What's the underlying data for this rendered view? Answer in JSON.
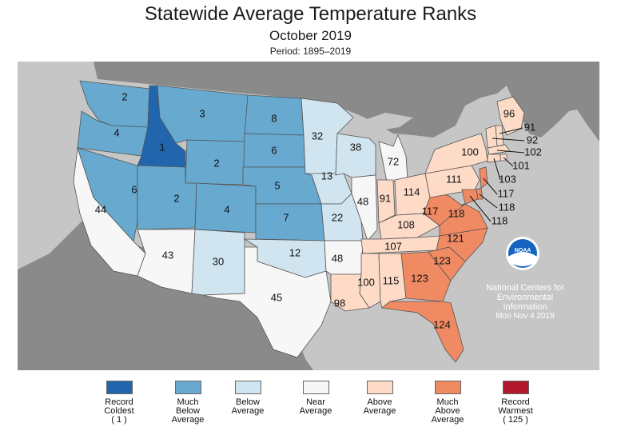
{
  "title": "Statewide Average Temperature Ranks",
  "subtitle": "October 2019",
  "period": "Period: 1895–2019",
  "credit": {
    "line1": "National Centers for",
    "line2": "Environmental",
    "line3": "Information",
    "date": "Mon Nov  4 2019"
  },
  "noaa_logo_text": "NOAA",
  "legend": [
    {
      "label": "Record\nColdest\n( 1 )",
      "color": "#2166ac"
    },
    {
      "label": "Much\nBelow\nAverage",
      "color": "#67a9cf"
    },
    {
      "label": "Below\nAverage",
      "color": "#d1e5f0"
    },
    {
      "label": "Near\nAverage",
      "color": "#f7f7f7"
    },
    {
      "label": "Above\nAverage",
      "color": "#fddbc7"
    },
    {
      "label": "Much\nAbove\nAverage",
      "color": "#ef8a62"
    },
    {
      "label": "Record\nWarmest\n( 125 )",
      "color": "#b2182b"
    }
  ],
  "states": [
    {
      "name": "Washington",
      "rank": 2
    },
    {
      "name": "Oregon",
      "rank": 4
    },
    {
      "name": "Idaho",
      "rank": 1
    },
    {
      "name": "Montana",
      "rank": 3
    },
    {
      "name": "North Dakota",
      "rank": 8
    },
    {
      "name": "South Dakota",
      "rank": 6
    },
    {
      "name": "Wyoming",
      "rank": 2
    },
    {
      "name": "Nevada",
      "rank": 6
    },
    {
      "name": "Utah",
      "rank": 2
    },
    {
      "name": "Colorado",
      "rank": 4
    },
    {
      "name": "Nebraska",
      "rank": 5
    },
    {
      "name": "Kansas",
      "rank": 7
    },
    {
      "name": "California",
      "rank": 44
    },
    {
      "name": "Arizona",
      "rank": 43
    },
    {
      "name": "New Mexico",
      "rank": 30
    },
    {
      "name": "Oklahoma",
      "rank": 12
    },
    {
      "name": "Texas",
      "rank": 45
    },
    {
      "name": "Minnesota",
      "rank": 32
    },
    {
      "name": "Iowa",
      "rank": 13
    },
    {
      "name": "Missouri",
      "rank": 22
    },
    {
      "name": "Arkansas",
      "rank": 48
    },
    {
      "name": "Louisiana",
      "rank": 98
    },
    {
      "name": "Wisconsin",
      "rank": 38
    },
    {
      "name": "Illinois",
      "rank": 48
    },
    {
      "name": "Michigan",
      "rank": 72
    },
    {
      "name": "Indiana",
      "rank": 91
    },
    {
      "name": "Ohio",
      "rank": 114
    },
    {
      "name": "Kentucky",
      "rank": 108
    },
    {
      "name": "Tennessee",
      "rank": 107
    },
    {
      "name": "Mississippi",
      "rank": 100
    },
    {
      "name": "Alabama",
      "rank": 115
    },
    {
      "name": "Georgia",
      "rank": 123
    },
    {
      "name": "Florida",
      "rank": 124
    },
    {
      "name": "South Carolina",
      "rank": 123
    },
    {
      "name": "North Carolina",
      "rank": 121
    },
    {
      "name": "Virginia",
      "rank": 118
    },
    {
      "name": "West Virginia",
      "rank": 117
    },
    {
      "name": "Pennsylvania",
      "rank": 111
    },
    {
      "name": "New York",
      "rank": 100
    },
    {
      "name": "Maine",
      "rank": 96
    },
    {
      "name": "New Hampshire",
      "rank": 91
    },
    {
      "name": "Vermont",
      "rank": 92
    },
    {
      "name": "Massachusetts",
      "rank": 102
    },
    {
      "name": "Rhode Island",
      "rank": 101
    },
    {
      "name": "Connecticut",
      "rank": 103
    },
    {
      "name": "New Jersey",
      "rank": 117
    },
    {
      "name": "Delaware",
      "rank": 118
    },
    {
      "name": "Maryland",
      "rank": 118
    }
  ]
}
